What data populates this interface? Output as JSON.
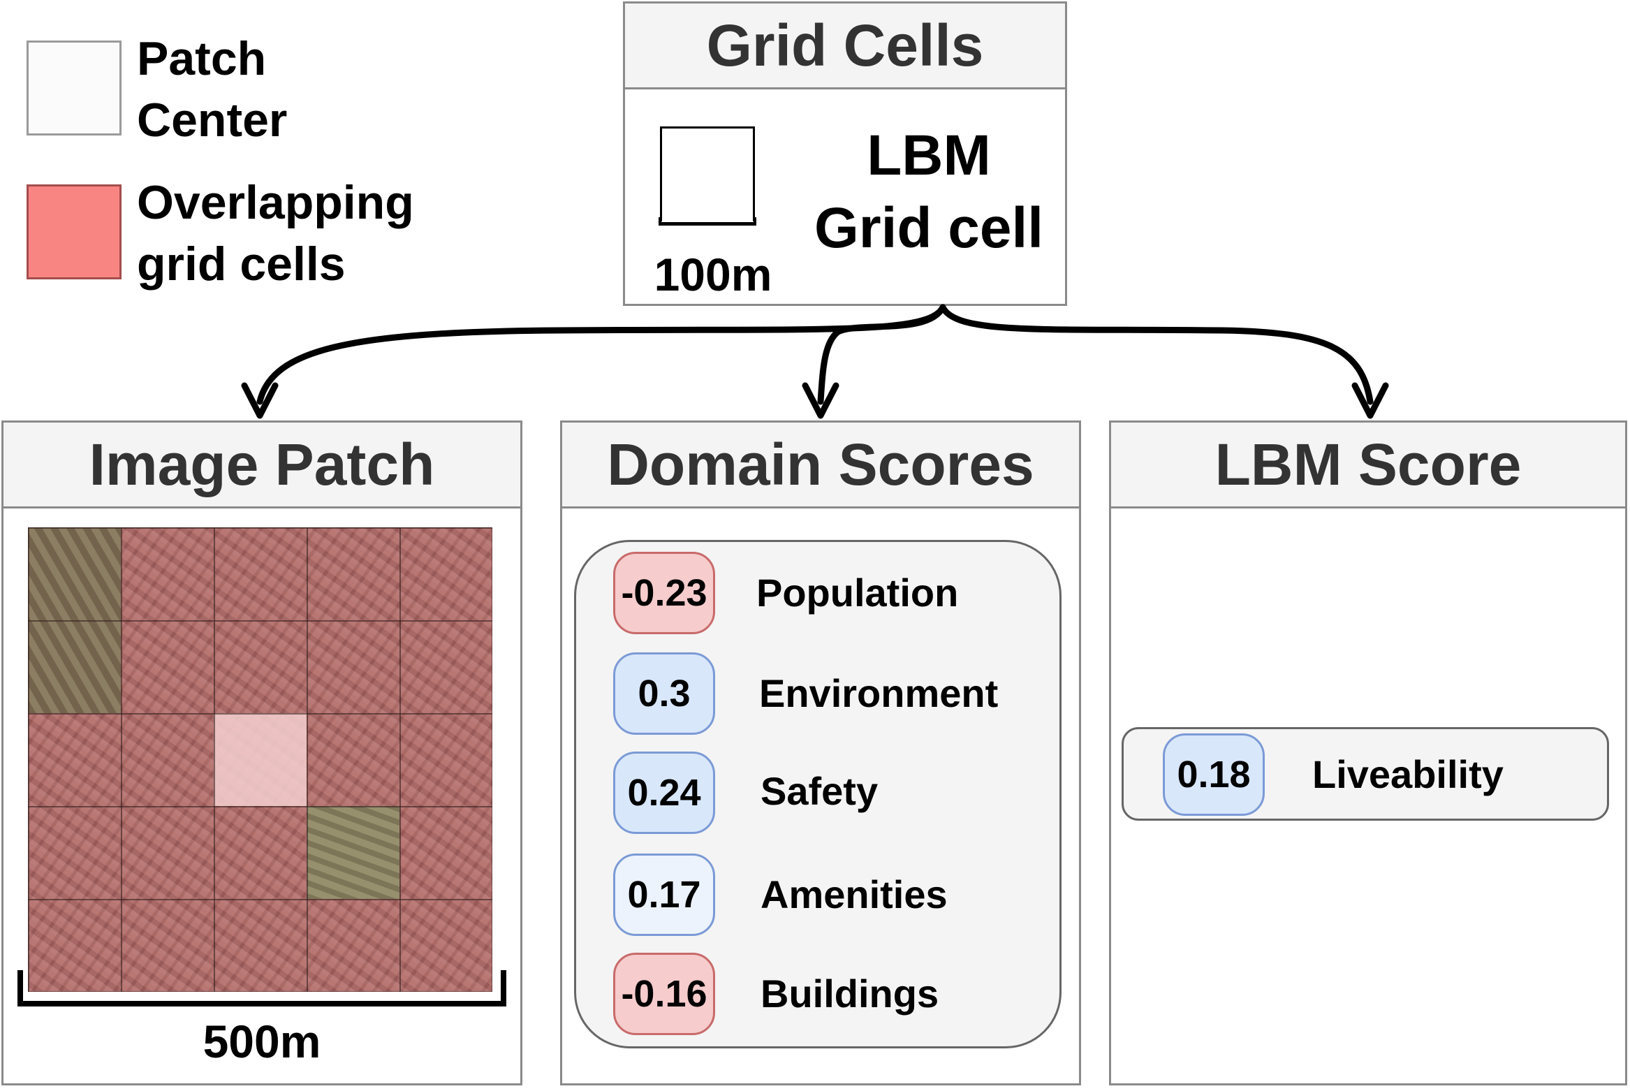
{
  "legend": {
    "patch_center": [
      "Patch",
      "Center"
    ],
    "overlapping": [
      "Overlapping",
      "grid cells"
    ]
  },
  "grid_cells": {
    "title": "Grid Cells",
    "cell_label": [
      "LBM",
      "Grid cell"
    ],
    "scale": "100m"
  },
  "image_patch": {
    "title": "Image Patch",
    "scale": "500m"
  },
  "domain_scores": {
    "title": "Domain Scores",
    "items": [
      {
        "value": "-0.23",
        "label": "Population"
      },
      {
        "value": "0.3",
        "label": "Environment"
      },
      {
        "value": "0.24",
        "label": "Safety"
      },
      {
        "value": "0.17",
        "label": "Amenities"
      },
      {
        "value": "-0.16",
        "label": "Buildings"
      }
    ]
  },
  "lbm_score": {
    "title": "LBM Score",
    "value": "0.18",
    "label": "Liveability"
  },
  "colors": {
    "overlap": "#f98583",
    "patch_center": "#f7f7f7",
    "negative": "#f6cccc",
    "positive": "#d9e7fb"
  }
}
